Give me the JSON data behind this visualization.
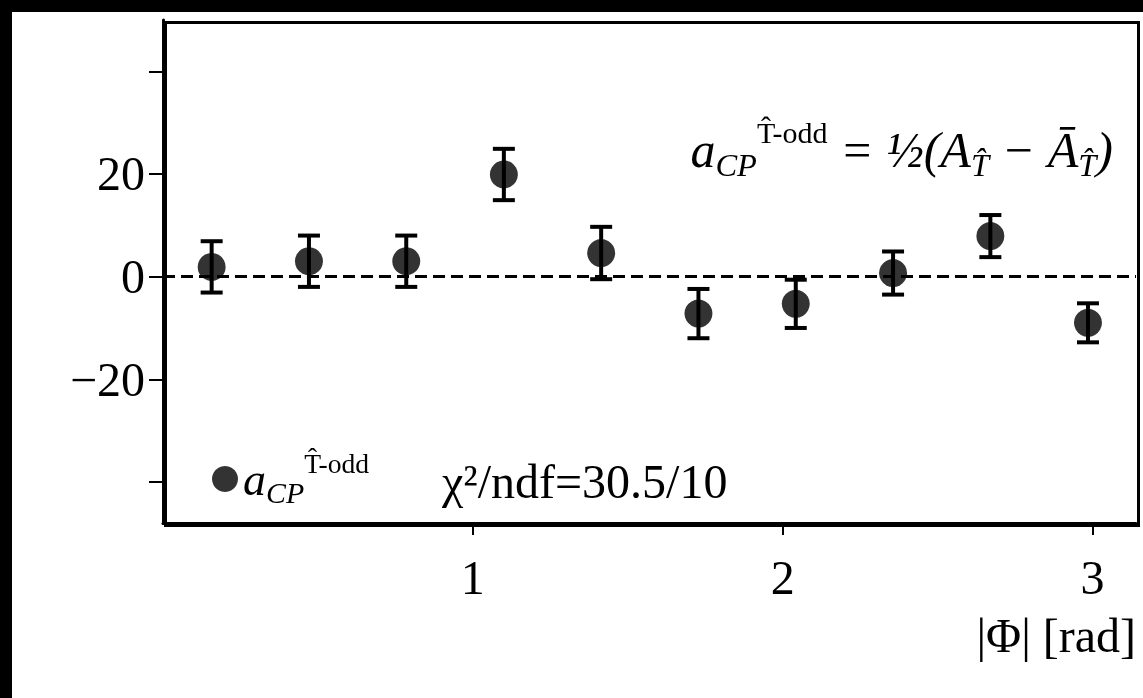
{
  "chart_data": {
    "type": "scatter",
    "xlabel": "|Φ| [rad]",
    "x": [
      0.157,
      0.471,
      0.785,
      1.1,
      1.414,
      1.728,
      2.042,
      2.356,
      2.67,
      2.985
    ],
    "series": [
      {
        "name": "a$_{CP}$$^{T̂-odd}$",
        "color": "#000000",
        "values": [
          1.9,
          3.0,
          3.0,
          19.9,
          4.6,
          -7.2,
          -5.3,
          0.7,
          7.9,
          -9.0
        ],
        "errors": [
          5.0,
          5.0,
          5.0,
          5.0,
          5.1,
          4.8,
          4.7,
          4.2,
          4.1,
          3.8
        ]
      }
    ],
    "xlim": [
      0,
      3.14
    ],
    "xticks": [
      1,
      2,
      3
    ],
    "ylim": [
      -48,
      50
    ],
    "yticks": [
      {
        "value": -40,
        "label": null
      },
      -20,
      0,
      20,
      {
        "value": 40,
        "label": null
      }
    ],
    "ref_lines": [
      {
        "axis": "y",
        "value": 0,
        "color": "#000000",
        "line_style": "dashed"
      }
    ],
    "annotations": [
      "a$_{CP}$$^{T̂-odd}$ = ½(A$_{T̂}$ − Ā$_{T̂}$)",
      "χ²/ndf=30.5/10"
    ],
    "marker": "circle",
    "legend": "bottom left",
    "grid": false
  }
}
